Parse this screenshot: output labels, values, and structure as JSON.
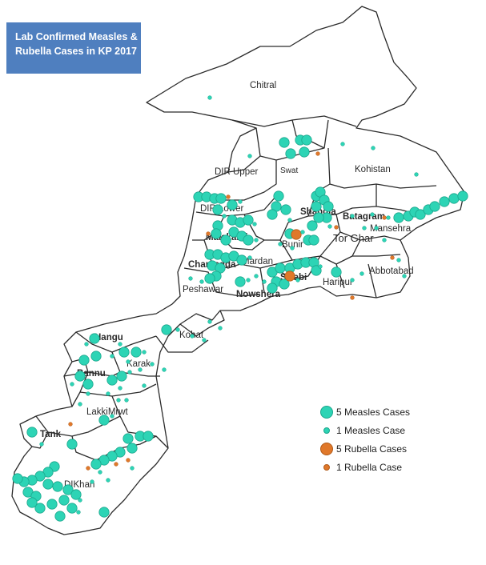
{
  "title": {
    "line1": "Lab Confirmed Measles &",
    "line2": "Rubella Cases  in KP 2017"
  },
  "colors": {
    "measles": "#2dd4b5",
    "measles_edge": "#1aa58b",
    "rubella": "#e0782a",
    "rubella_edge": "#b05a18",
    "title_bg": "#4f7fbf",
    "border": "#2b2b2b"
  },
  "district_labels": {
    "chitral": "Chitral",
    "dir_upper": "DIR Upper",
    "swat": "Swat",
    "kohistan": "Kohistan",
    "dir_lower": "DIR Lower",
    "shangla": "Shangla",
    "batagram": "Batagram",
    "mansehra": "Mansehra",
    "malakand": "Malakand",
    "buner": "Bunir",
    "tor_ghar": "Tor Ghar",
    "charsadda": "Charsadda",
    "mardan": "Mardan",
    "swabi": "Swabi",
    "haripur": "Haripur",
    "abbottabad": "Abbotabad",
    "peshawar": "Peshawar",
    "nowshera": "Nowshera",
    "kohat": "Kohat",
    "hangu": "Hangu",
    "karak": "Karak",
    "bannu": "Bannu",
    "lakki_marwat": "LakkiMrwt",
    "tank": "Tank",
    "di_khan": "DIKhan"
  },
  "legend": {
    "items": [
      {
        "label": "5 Measles Cases",
        "kind": "measles5"
      },
      {
        "label": "1 Measles Case",
        "kind": "measles1"
      },
      {
        "label": "5 Rubella Cases",
        "kind": "rubella5"
      },
      {
        "label": "1 Rubella Case",
        "kind": "rubella1"
      }
    ]
  }
}
